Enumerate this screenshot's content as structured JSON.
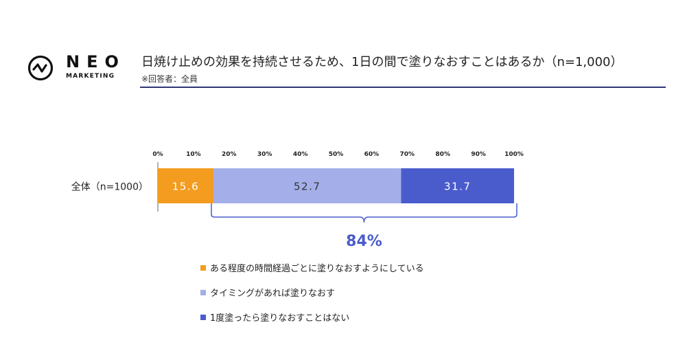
{
  "logo": {
    "word": "NEO",
    "sub": "MARKETING"
  },
  "header": {
    "title": "日焼け止めの効果を持続させるため、1日の間で塗りなおすことはあるか（n=1,000）",
    "subtitle": "※回答者：全員"
  },
  "chart_data": {
    "type": "bar",
    "orientation": "horizontal-stacked-100",
    "categories": [
      "全体（n=1000）"
    ],
    "series": [
      {
        "name": "ある程度の時間経過ごとに塗りなおすようにしている",
        "values": [
          15.6
        ],
        "color": "#f39c1f"
      },
      {
        "name": "タイミングがあれば塗りなおす",
        "values": [
          52.7
        ],
        "color": "#a4aee8"
      },
      {
        "name": "1度塗ったら塗りなおすことはない",
        "values": [
          31.7
        ],
        "color": "#4a5ccc"
      }
    ],
    "xlim": [
      0,
      100
    ],
    "xticks": [
      "0%",
      "10%",
      "20%",
      "30%",
      "40%",
      "50%",
      "60%",
      "70%",
      "80%",
      "90%",
      "100%"
    ],
    "data_label_colors": [
      "#ffffff",
      "#333333",
      "#ffffff"
    ],
    "annotation": {
      "text": "84%",
      "color": "#4a5ccc"
    },
    "legend_position": "bottom-left"
  }
}
